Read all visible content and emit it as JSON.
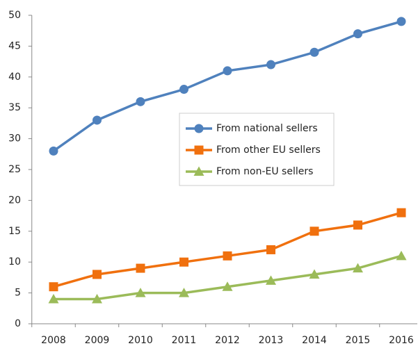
{
  "chart_data": {
    "type": "line",
    "categories": [
      "2008",
      "2009",
      "2010",
      "2011",
      "2012",
      "2013",
      "2014",
      "2015",
      "2016"
    ],
    "series": [
      {
        "name": "From national sellers",
        "color": "#4f81bd",
        "marker": "circle",
        "values": [
          28,
          33,
          36,
          38,
          41,
          42,
          44,
          47,
          49
        ]
      },
      {
        "name": "From other EU sellers",
        "color": "#f0700e",
        "marker": "square",
        "values": [
          6,
          8,
          9,
          10,
          11,
          12,
          15,
          16,
          18
        ]
      },
      {
        "name": "From non-EU sellers",
        "color": "#9bbb59",
        "marker": "triangle",
        "values": [
          4,
          4,
          5,
          5,
          6,
          7,
          8,
          9,
          11
        ]
      }
    ],
    "ylim": [
      0,
      50
    ],
    "yticks": [
      0,
      5,
      10,
      15,
      20,
      25,
      30,
      35,
      40,
      45,
      50
    ],
    "grid": false,
    "legend": "center"
  }
}
